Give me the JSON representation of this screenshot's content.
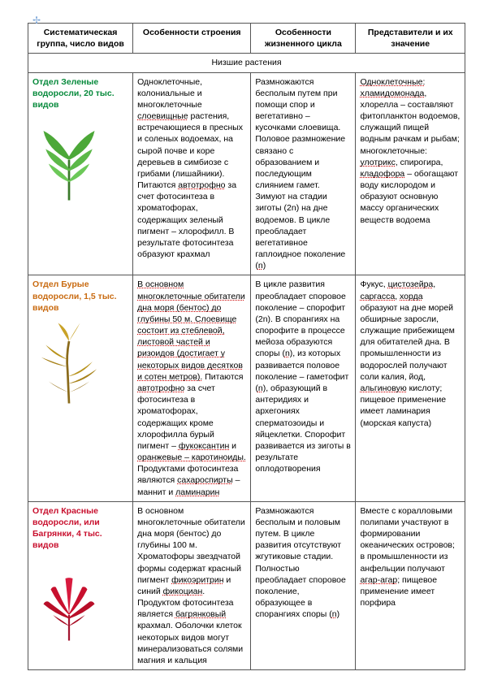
{
  "headers": {
    "col1": "Систематическая группа, число видов",
    "col2": "Особенности строения",
    "col3": "Особенности жизненного цикла",
    "col4": "Представители и их значение"
  },
  "section_title": "Низшие растения",
  "rows": [
    {
      "group_html": "Отдел Зеленые водоросли, 20 тыс. видов",
      "group_color": "green",
      "structure": "Одноклеточные, колониальные и многоклеточные <span class='w'>слоевищные</span> растения, встречающиеся в пресных и соленых водоемах, на сырой почве и коре деревьев в симбиозе с грибами (лишайники). Питаются <span class='w'>автотрофно</span> за счет фотосинтеза в хроматофорах, содержащих зеленый пигмент – хлорофилл. В результате фотосинтеза образуют крахмал",
      "lifecycle": "Размножаются бесполым путем при помощи спор и вегетативно – кусочками слоевища. Половое размножение связано с образованием и последующим слиянием гамет. Зимуют на стадии зиготы (2n) на дне водоемов. В цикле преобладает вегетативное гаплоидное поколение (<span class='w'>n</span>)",
      "reps": "<span class='w'>Одноклеточные:</span> <span class='w'>хламидомонада</span>, хлорелла – составляют фитопланктон водоемов, служащий пищей водным рачкам и рыбам; многоклеточные: <span class='w'>улотрикс</span>, спирогира, <span class='w'>кладофора</span> – обогащают воду кислородом и образуют основную массу органических веществ водоема",
      "svg": "green"
    },
    {
      "group_html": "Отдел Бурые водоросли, 1,5 тыс. видов",
      "group_color": "brown",
      "structure": "<span class='w'>В основном многоклеточные обитатели дна моря (бентос) до глубины 50 м. Слоевище состоит из стеблевой, листовой частей и ризоидов (достигает у некоторых видов десятков и сотен метров).</span> Питаются <span class='w'>автотрофно</span> за счет фотосинтеза в хроматофорах, содержащих кроме хлорофилла бурый пигмент – <span class='w'>фукоксантин</span> и <span class='w'>оранжевые – каротиноиды.</span> Продуктами фотосинтеза являются <span class='w'>сахароспирты</span> – маннит и <span class='w'>ламинарин</span>",
      "lifecycle": "В цикле развития преобладает споровое поколение – спорофит (2n). В спорангиях на спорофите в процессе мейоза образуются споры (<span class='w'>n</span>), из которых развивается половое поколение – гаметофит (<span class='w'>n</span>), образующий в антеридиях и архегониях сперматозоиды и яйцеклетки. Спорофит развивается из зиготы в результате оплодотворения",
      "reps": "Фукус, <span class='w'>цистозейра</span>, <span class='w'>саргасса</span>, <span class='w'>хорда</span> образуют на дне морей обширные заросли, служащие прибежищем для обитателей дна. В промышленности из водорослей получают соли калия, йод, <span class='w'>альгиновую</span> кислоту; пищевое применение имеет ламинария (морская капуста)",
      "svg": "brown"
    },
    {
      "group_html": "Отдел Красные водоросли, или Багрянки, 4 тыс. видов",
      "group_color": "red",
      "structure": "В основном многоклеточные обитатели дна моря (бентос) до глубины 100 м. Хроматофоры звездчатой формы содержат красный пигмент <span class='w'>фикоэритрин</span> и синий <span class='w'>фикоциан</span>. Продуктом фотосинтеза является <span class='w'>багрянковый</span> крахмал. Оболочки клеток некоторых видов могут минерализоваться солями магния и кальция",
      "lifecycle": "Размножаются бесполым и половым путем. В цикле развития отсутствуют жгутиковые стадии. Полностью преобладает споровое поколение, образующее в спорангиях споры (<span class='w'>n</span>)",
      "reps": "Вместе с коралловыми полипами участвуют в формировании океанических островов; в промышленности из анфельции получают <span class='w'>агар-агар</span>; пищевое применение имеет порфира",
      "svg": "red"
    }
  ]
}
